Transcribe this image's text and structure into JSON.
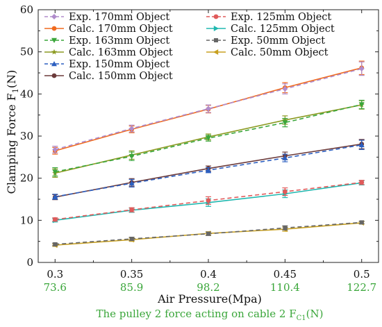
{
  "chart_data": {
    "type": "line",
    "x": [
      0.3,
      0.35,
      0.4,
      0.45,
      0.5
    ],
    "x_tick_labels": [
      "0.3",
      "0.35",
      "0.4",
      "0.45",
      "0.5"
    ],
    "x_secondary_tick_labels": [
      "73.6",
      "85.9",
      "98.2",
      "110.4",
      "122.7"
    ],
    "xlabel": "Air Pressure(Mpa)",
    "xlabel_secondary": "The pulley 2 force acting on cable 2 F",
    "xlabel_secondary_sub": "C1",
    "xlabel_secondary_unit": "(N)",
    "ylabel": "Clamping Force F",
    "ylabel_sub": "1",
    "ylabel_unit": "(N)",
    "ylim": [
      0,
      60
    ],
    "y_ticks": [
      "0",
      "10",
      "20",
      "30",
      "40",
      "50",
      "60"
    ],
    "grid": false,
    "legend_placement": "top-left",
    "series": [
      {
        "name": "Exp.  170mm Object",
        "color": "#b08ccc",
        "dash": true,
        "marker": "diamond",
        "values": [
          26.8,
          31.8,
          36.5,
          41.2,
          46.0
        ],
        "errors": [
          0.8,
          0.8,
          0.9,
          1.2,
          1.6
        ]
      },
      {
        "name": "Calc. 170mm Object",
        "color": "#f06a1e",
        "dash": false,
        "marker": "circle",
        "values": [
          26.5,
          31.6,
          36.4,
          41.5,
          46.2
        ],
        "errors": [
          0.8,
          0.8,
          0.9,
          1.2,
          1.6
        ]
      },
      {
        "name": "Exp.  163mm Object",
        "color": "#3aa63a",
        "dash": true,
        "marker": "triangle-down",
        "values": [
          21.5,
          25.2,
          29.5,
          33.2,
          37.5
        ],
        "errors": [
          1.0,
          1.0,
          0.7,
          1.0,
          1.0
        ]
      },
      {
        "name": "Calc. 163mm Object",
        "color": "#8c9a22",
        "dash": false,
        "marker": "star",
        "values": [
          21.2,
          25.5,
          29.8,
          33.8,
          37.4
        ],
        "errors": [
          1.0,
          1.0,
          0.7,
          1.0,
          1.0
        ]
      },
      {
        "name": "Exp.  150mm Object",
        "color": "#2c5fc0",
        "dash": true,
        "marker": "triangle-up",
        "values": [
          15.6,
          18.8,
          21.9,
          24.8,
          27.9
        ],
        "errors": [
          0.6,
          0.9,
          0.6,
          0.9,
          1.1
        ]
      },
      {
        "name": "Calc. 150mm Object",
        "color": "#6b3a3a",
        "dash": false,
        "marker": "circle",
        "values": [
          15.5,
          19.0,
          22.3,
          25.3,
          28.1
        ],
        "errors": [
          0.6,
          0.9,
          0.6,
          0.9,
          1.1
        ]
      },
      {
        "name": "Exp.  125mm Object",
        "color": "#e05a5a",
        "dash": true,
        "marker": "circle",
        "values": [
          10.2,
          12.5,
          14.7,
          16.8,
          19.0
        ],
        "errors": [
          0.4,
          0.5,
          0.9,
          0.9,
          0.5
        ]
      },
      {
        "name": "Calc. 125mm Object",
        "color": "#20b8b0",
        "dash": false,
        "marker": "triangle-right",
        "values": [
          10.0,
          12.4,
          14.2,
          16.3,
          18.9
        ],
        "errors": [
          0.4,
          0.5,
          0.9,
          0.9,
          0.5
        ]
      },
      {
        "name": "Exp.  50mm Object",
        "color": "#666666",
        "dash": true,
        "marker": "square",
        "values": [
          4.3,
          5.6,
          6.8,
          8.2,
          9.5
        ],
        "errors": [
          0.3,
          0.4,
          0.4,
          0.5,
          0.3
        ]
      },
      {
        "name": "Calc. 50mm Object",
        "color": "#c8a020",
        "dash": false,
        "marker": "triangle-left",
        "values": [
          4.1,
          5.4,
          6.9,
          7.9,
          9.4
        ],
        "errors": [
          0.3,
          0.4,
          0.4,
          0.5,
          0.3
        ]
      }
    ]
  }
}
